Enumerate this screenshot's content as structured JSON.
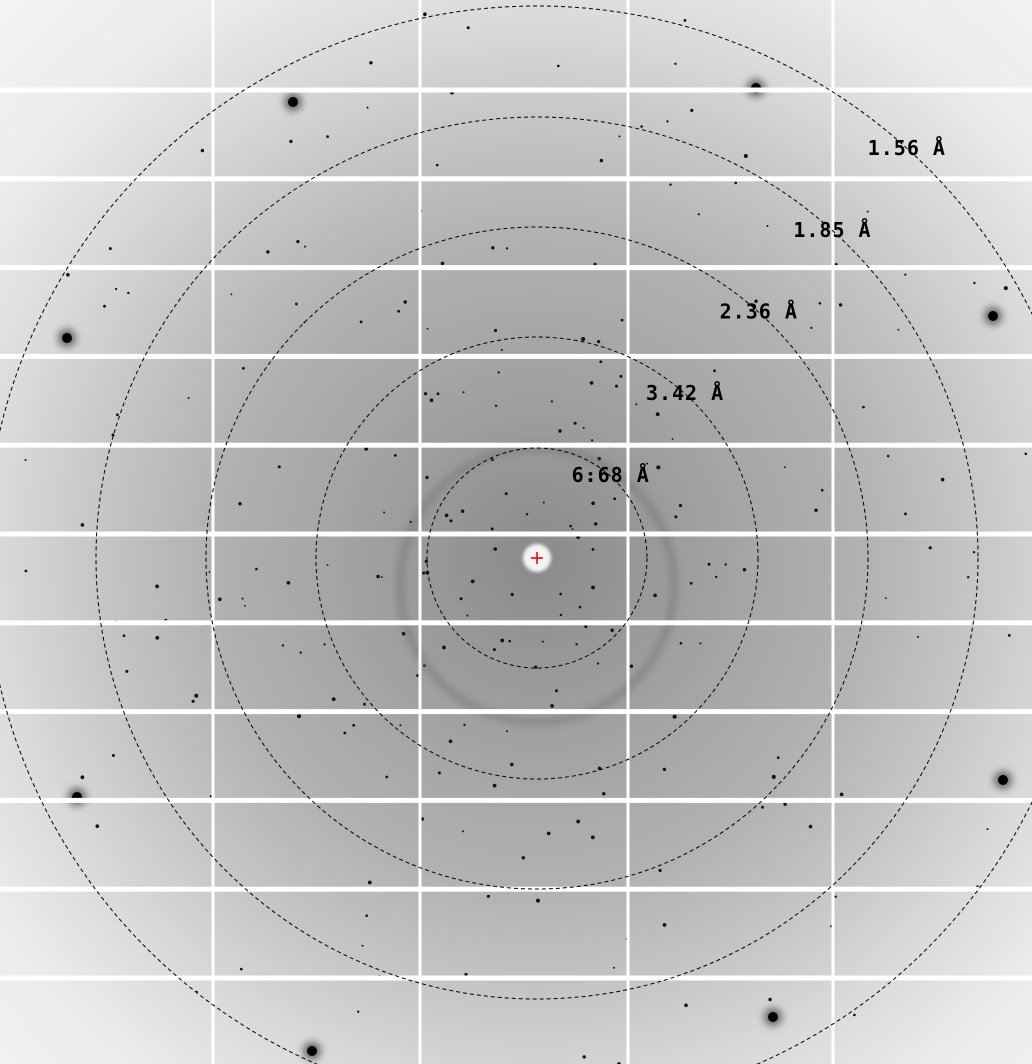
{
  "resolution_rings": {
    "labels": [
      "6.68 Å",
      "3.42 Å",
      "2.36 Å",
      "1.85 Å",
      "1.56 Å"
    ]
  }
}
